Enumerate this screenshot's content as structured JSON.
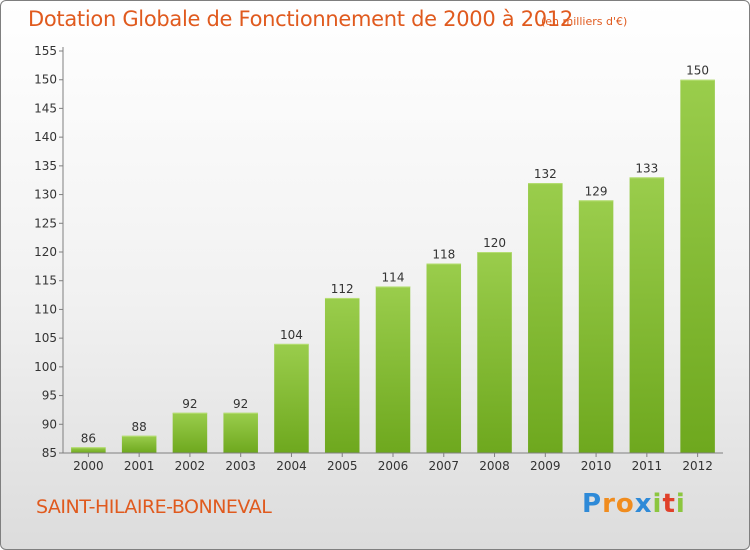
{
  "header": {
    "title": "Dotation Globale de Fonctionnement de 2000 à 2012",
    "subtitle": "(en milliers d'€)"
  },
  "footer": {
    "commune": "SAINT-HILAIRE-BONNEVAL",
    "logo_letters": [
      "P",
      "r",
      "o",
      "x",
      "i",
      "t",
      "i"
    ],
    "logo_colors": [
      "#2e8ad8",
      "#f08c1e",
      "#f08c1e",
      "#2e8ad8",
      "#8cc63f",
      "#e0402a",
      "#8cc63f"
    ]
  },
  "colors": {
    "bar_top": "#9acd4c",
    "bar_bottom": "#6ea81e",
    "axis": "#7f7f7f",
    "text": "#333333",
    "accent": "#e05a1e"
  },
  "chart_data": {
    "type": "bar",
    "title": "Dotation Globale de Fonctionnement de 2000 à 2012",
    "subtitle": "(en milliers d'€)",
    "categories": [
      "2000",
      "2001",
      "2002",
      "2003",
      "2004",
      "2005",
      "2006",
      "2007",
      "2008",
      "2009",
      "2010",
      "2011",
      "2012"
    ],
    "values": [
      86,
      88,
      92,
      92,
      104,
      112,
      114,
      118,
      120,
      132,
      129,
      133,
      150
    ],
    "ylim": [
      85,
      155
    ],
    "yticks": [
      85,
      90,
      95,
      100,
      105,
      110,
      115,
      120,
      125,
      130,
      135,
      140,
      145,
      150,
      155
    ],
    "grid": false,
    "legend": "none"
  }
}
